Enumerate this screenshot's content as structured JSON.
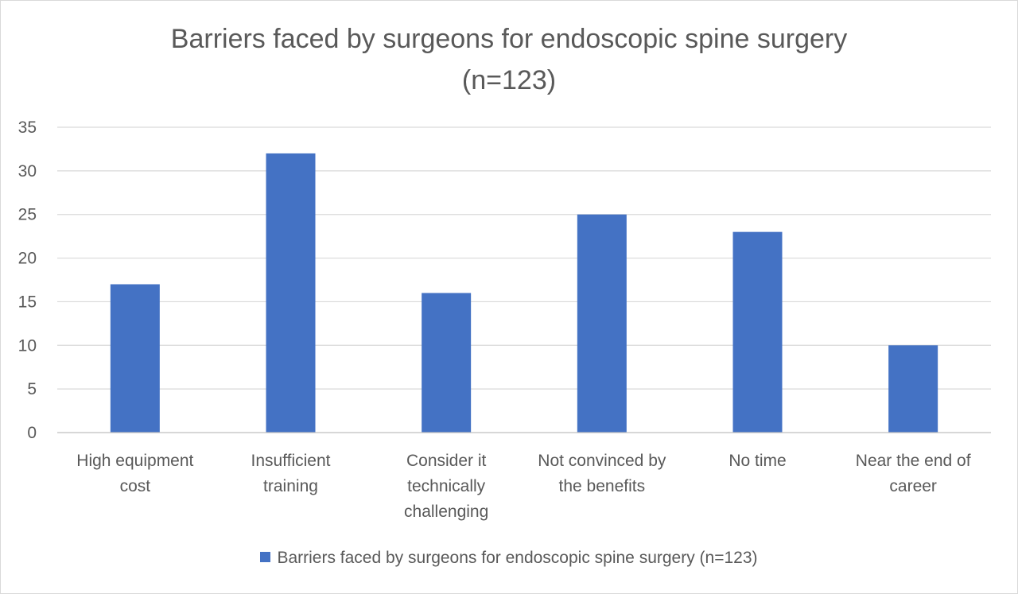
{
  "chart_data": {
    "type": "bar",
    "title_lines": [
      "Barriers faced by surgeons for endoscopic spine surgery",
      "(n=123)"
    ],
    "categories": [
      [
        "High equipment",
        "cost"
      ],
      [
        "Insufficient",
        "training"
      ],
      [
        "Consider it",
        "technically",
        "challenging"
      ],
      [
        "Not convinced by",
        "the benefits"
      ],
      [
        "No time"
      ],
      [
        "Near the end of",
        "career"
      ]
    ],
    "series": [
      {
        "name": "Barriers faced by surgeons for endoscopic spine surgery (n=123)",
        "values": [
          17,
          32,
          16,
          25,
          23,
          10
        ],
        "color": "#4472c4"
      }
    ],
    "xlabel": "",
    "ylabel": "",
    "ylim": [
      0,
      35
    ],
    "yticks": [
      "0",
      "5",
      "10",
      "15",
      "20",
      "25",
      "30",
      "35"
    ],
    "grid": true,
    "legend_position": "bottom",
    "gridline_color": "#d9d9d9",
    "axis_color": "#bfbfbf",
    "text_color": "#595959"
  }
}
